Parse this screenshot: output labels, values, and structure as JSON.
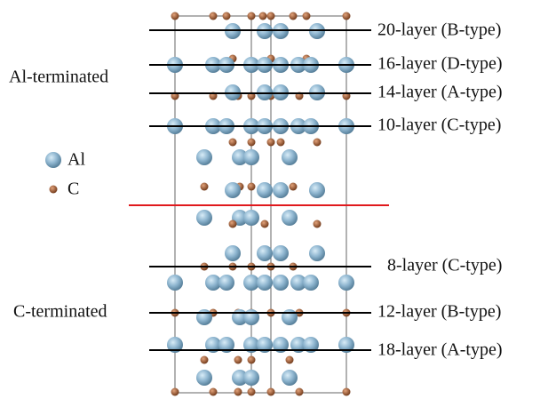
{
  "layers": [
    {
      "label": "20-layer (B-type)"
    },
    {
      "label": "16-layer (D-type)"
    },
    {
      "label": "14-layer (A-type)"
    },
    {
      "label": "10-layer (C-type)"
    },
    {
      "label": "8-layer (C-type)"
    },
    {
      "label": "12-layer (B-type)"
    },
    {
      "label": "18-layer (A-type)"
    }
  ],
  "terminations": {
    "top": "Al-terminated",
    "bottom": "C-terminated"
  },
  "legend": [
    {
      "label": "Al"
    },
    {
      "label": "C"
    }
  ]
}
